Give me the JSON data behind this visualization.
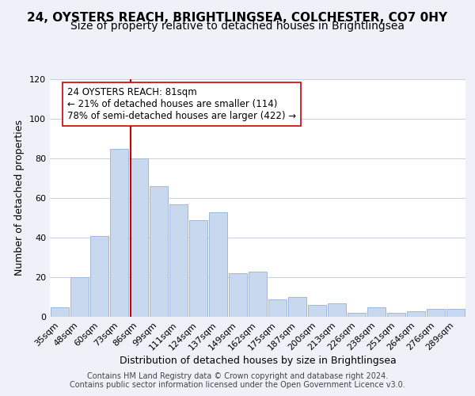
{
  "title_line1": "24, OYSTERS REACH, BRIGHTLINGSEA, COLCHESTER, CO7 0HY",
  "title_line2": "Size of property relative to detached houses in Brightlingsea",
  "xlabel": "Distribution of detached houses by size in Brightlingsea",
  "ylabel": "Number of detached properties",
  "footer_line1": "Contains HM Land Registry data © Crown copyright and database right 2024.",
  "footer_line2": "Contains public sector information licensed under the Open Government Licence v3.0.",
  "bar_labels": [
    "35sqm",
    "48sqm",
    "60sqm",
    "73sqm",
    "86sqm",
    "99sqm",
    "111sqm",
    "124sqm",
    "137sqm",
    "149sqm",
    "162sqm",
    "175sqm",
    "187sqm",
    "200sqm",
    "213sqm",
    "226sqm",
    "238sqm",
    "251sqm",
    "264sqm",
    "276sqm",
    "289sqm"
  ],
  "bar_values": [
    5,
    20,
    41,
    85,
    80,
    66,
    57,
    49,
    53,
    22,
    23,
    9,
    10,
    6,
    7,
    2,
    5,
    2,
    3,
    4,
    4
  ],
  "bar_color": "#c8d9ef",
  "bar_edge_color": "#a0b8d8",
  "vline_position": 3.575,
  "vline_color": "#cc0000",
  "annotation_text": "24 OYSTERS REACH: 81sqm\n← 21% of detached houses are smaller (114)\n78% of semi-detached houses are larger (422) →",
  "annotation_box_color": "#ffffff",
  "annotation_box_edge": "#cc0000",
  "ylim": [
    0,
    120
  ],
  "yticks": [
    0,
    20,
    40,
    60,
    80,
    100,
    120
  ],
  "background_color": "#eef2f8",
  "plot_background": "#ffffff",
  "grid_color": "#c8d0e0",
  "title_fontsize": 11,
  "subtitle_fontsize": 10,
  "axis_label_fontsize": 9,
  "tick_fontsize": 8,
  "annotation_fontsize": 8.5,
  "footer_fontsize": 7
}
